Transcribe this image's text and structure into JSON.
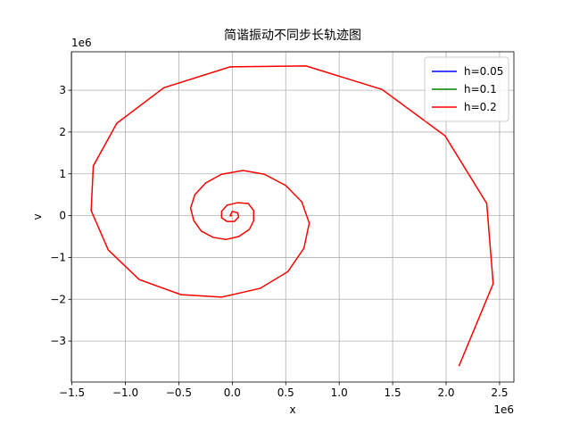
{
  "chart_data": {
    "type": "line",
    "title": "简谐振动不同步长轨迹图",
    "x_label": "x",
    "y_label": "v",
    "x_offset_label": "1e6",
    "y_offset_label": "1e6",
    "xlim": [
      -1.505,
      2.634
    ],
    "ylim": [
      -3.98,
      3.92
    ],
    "xticks": [
      {
        "value": -1.5,
        "label": "−1.5"
      },
      {
        "value": -1.0,
        "label": "−1.0"
      },
      {
        "value": -0.5,
        "label": "−0.5"
      },
      {
        "value": 0.0,
        "label": "0.0"
      },
      {
        "value": 0.5,
        "label": "0.5"
      },
      {
        "value": 1.0,
        "label": "1.0"
      },
      {
        "value": 1.5,
        "label": "1.5"
      },
      {
        "value": 2.0,
        "label": "2.0"
      },
      {
        "value": 2.5,
        "label": "2.5"
      }
    ],
    "yticks": [
      {
        "value": -3,
        "label": "−3"
      },
      {
        "value": -2,
        "label": "−2"
      },
      {
        "value": -1,
        "label": "−1"
      },
      0,
      1,
      2,
      3
    ],
    "grid": true,
    "legend": "upper right",
    "series": [
      {
        "name": "h=0.05",
        "color": "#0000ff",
        "x": [
          0,
          0
        ],
        "values": [
          0,
          0
        ]
      },
      {
        "name": "h=0.1",
        "color": "#008000",
        "x": [
          0,
          0
        ],
        "values": [
          0,
          0
        ]
      },
      {
        "name": "h=0.2",
        "color": "#ff0000",
        "x": [
          0,
          -0.02,
          0,
          0.05,
          0.06,
          0.02,
          -0.05,
          -0.1,
          -0.1,
          -0.05,
          0.05,
          0.15,
          0.2,
          0.2,
          0.16,
          0.06,
          -0.06,
          -0.18,
          -0.29,
          -0.36,
          -0.39,
          -0.35,
          -0.25,
          -0.1,
          0.1,
          0.3,
          0.5,
          0.65,
          0.72,
          0.67,
          0.52,
          0.26,
          -0.1,
          -0.48,
          -0.87,
          -1.16,
          -1.32,
          -1.3,
          -1.08,
          -0.64,
          -0.02,
          0.69,
          1.4,
          1.99,
          2.38,
          2.44,
          2.12
        ],
        "values": [
          0,
          0,
          0.1,
          0.07,
          -0.03,
          -0.14,
          -0.14,
          -0.05,
          0.1,
          0.25,
          0.31,
          0.29,
          0.12,
          -0.12,
          -0.33,
          -0.5,
          -0.57,
          -0.52,
          -0.37,
          -0.12,
          0.18,
          0.5,
          0.78,
          0.99,
          1.08,
          0.99,
          0.72,
          0.33,
          -0.18,
          -0.78,
          -1.34,
          -1.74,
          -1.95,
          -1.89,
          -1.53,
          -0.82,
          0.12,
          1.19,
          2.21,
          3.06,
          3.56,
          3.58,
          3.02,
          1.91,
          0.29,
          -1.63,
          -3.6
        ]
      }
    ]
  }
}
